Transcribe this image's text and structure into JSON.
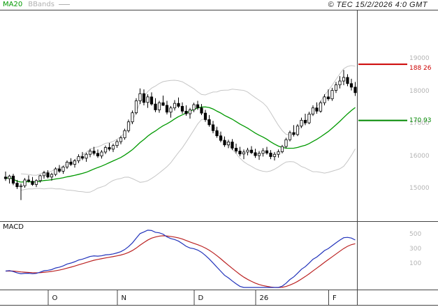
{
  "header": {
    "legend_ma20": "MA20",
    "legend_bbands": "BBands",
    "copyright": "© TEC 15/2/2026 4:0 GMT"
  },
  "colors": {
    "ma20": "#009900",
    "bbands": "#c6c6c6",
    "candle_up_fill": "#ffffff",
    "candle_down_fill": "#000000",
    "candle_stroke": "#000000",
    "macd_line": "#2233bb",
    "macd_signal": "#bb2222",
    "frame": "#444444",
    "axis_label_gray": "#b4b4b4",
    "level_resistance": "#cc0000",
    "level_support": "#008800"
  },
  "chart_data": {
    "type": "candlestick",
    "title": "",
    "xlabel": "",
    "ylabel": "",
    "x_axis": {
      "tick_labels": [
        "O",
        "N",
        "D",
        "26",
        "F"
      ],
      "tick_bar_index": [
        11,
        29,
        49,
        65,
        84
      ]
    },
    "y_axis": {
      "tick_labels": [
        "19000",
        "18000",
        "17000",
        "16000",
        "15000"
      ],
      "tick_values": [
        19000,
        18000,
        17000,
        16000,
        15000
      ]
    },
    "levels": [
      {
        "label": "188 26",
        "value": 18826,
        "color": "#cc0000"
      },
      {
        "label": "170 93",
        "value": 17093,
        "color": "#008800"
      }
    ],
    "indicators": {
      "ma": {
        "name": "MA20",
        "period": 20,
        "color": "#009900"
      },
      "bbands": {
        "name": "BBands",
        "period": 20,
        "stddev": 2,
        "color": "#c6c6c6"
      }
    },
    "candles_ohlc": [
      [
        15350,
        15520,
        15230,
        15300
      ],
      [
        15300,
        15420,
        15150,
        15380
      ],
      [
        15380,
        15450,
        15100,
        15160
      ],
      [
        15160,
        15260,
        14980,
        15050
      ],
      [
        15050,
        15150,
        14640,
        15080
      ],
      [
        15080,
        15320,
        15020,
        15260
      ],
      [
        15260,
        15400,
        15180,
        15220
      ],
      [
        15220,
        15350,
        15080,
        15120
      ],
      [
        15120,
        15280,
        15040,
        15240
      ],
      [
        15240,
        15420,
        15180,
        15390
      ],
      [
        15390,
        15540,
        15300,
        15480
      ],
      [
        15480,
        15560,
        15310,
        15350
      ],
      [
        15350,
        15480,
        15240,
        15430
      ],
      [
        15430,
        15650,
        15380,
        15600
      ],
      [
        15600,
        15720,
        15480,
        15530
      ],
      [
        15530,
        15700,
        15450,
        15660
      ],
      [
        15660,
        15860,
        15600,
        15810
      ],
      [
        15810,
        15930,
        15690,
        15740
      ],
      [
        15740,
        15900,
        15640,
        15850
      ],
      [
        15850,
        16050,
        15780,
        15980
      ],
      [
        15980,
        16120,
        15870,
        15930
      ],
      [
        15930,
        16100,
        15820,
        16050
      ],
      [
        16050,
        16220,
        15960,
        16150
      ],
      [
        16150,
        16280,
        16020,
        16080
      ],
      [
        16080,
        16200,
        15940,
        16000
      ],
      [
        16000,
        16180,
        15920,
        16120
      ],
      [
        16120,
        16320,
        16060,
        16260
      ],
      [
        16260,
        16400,
        16150,
        16210
      ],
      [
        16210,
        16380,
        16120,
        16320
      ],
      [
        16320,
        16500,
        16250,
        16440
      ],
      [
        16440,
        16620,
        16360,
        16560
      ],
      [
        16560,
        16840,
        16500,
        16780
      ],
      [
        16780,
        17120,
        16720,
        17050
      ],
      [
        17050,
        17400,
        16980,
        17330
      ],
      [
        17330,
        17780,
        17280,
        17700
      ],
      [
        17700,
        18080,
        17600,
        17920
      ],
      [
        17920,
        18050,
        17560,
        17650
      ],
      [
        17650,
        17900,
        17480,
        17820
      ],
      [
        17820,
        17960,
        17550,
        17600
      ],
      [
        17600,
        17780,
        17350,
        17420
      ],
      [
        17420,
        17700,
        17330,
        17640
      ],
      [
        17640,
        17860,
        17540,
        17560
      ],
      [
        17560,
        17700,
        17280,
        17350
      ],
      [
        17350,
        17540,
        17180,
        17480
      ],
      [
        17480,
        17720,
        17400,
        17620
      ],
      [
        17620,
        17800,
        17480,
        17530
      ],
      [
        17530,
        17650,
        17300,
        17380
      ],
      [
        17380,
        17560,
        17240,
        17300
      ],
      [
        17300,
        17480,
        17150,
        17420
      ],
      [
        17420,
        17640,
        17350,
        17580
      ],
      [
        17580,
        17700,
        17420,
        17480
      ],
      [
        17480,
        17600,
        17260,
        17320
      ],
      [
        17320,
        17420,
        17050,
        17120
      ],
      [
        17120,
        17260,
        16900,
        16960
      ],
      [
        16960,
        17080,
        16700,
        16780
      ],
      [
        16780,
        16900,
        16560,
        16620
      ],
      [
        16620,
        16750,
        16420,
        16480
      ],
      [
        16480,
        16600,
        16280,
        16340
      ],
      [
        16340,
        16500,
        16240,
        16430
      ],
      [
        16430,
        16520,
        16180,
        16240
      ],
      [
        16240,
        16380,
        16080,
        16150
      ],
      [
        16150,
        16280,
        15990,
        16060
      ],
      [
        16060,
        16200,
        15900,
        16120
      ],
      [
        16120,
        16250,
        16020,
        16180
      ],
      [
        16180,
        16300,
        16060,
        16100
      ],
      [
        16100,
        16220,
        15940,
        16010
      ],
      [
        16010,
        16150,
        15880,
        16080
      ],
      [
        16080,
        16240,
        15980,
        16160
      ],
      [
        16160,
        16280,
        16040,
        16090
      ],
      [
        16090,
        16180,
        15900,
        15980
      ],
      [
        15980,
        16120,
        15860,
        16050
      ],
      [
        16050,
        16200,
        15950,
        16130
      ],
      [
        16130,
        16340,
        16080,
        16290
      ],
      [
        16290,
        16560,
        16240,
        16500
      ],
      [
        16500,
        16780,
        16450,
        16720
      ],
      [
        16720,
        16950,
        16600,
        16660
      ],
      [
        16660,
        16980,
        16610,
        16920
      ],
      [
        16920,
        17180,
        16860,
        17100
      ],
      [
        17100,
        17300,
        16950,
        17020
      ],
      [
        17020,
        17360,
        16980,
        17290
      ],
      [
        17290,
        17560,
        17230,
        17480
      ],
      [
        17480,
        17650,
        17300,
        17380
      ],
      [
        17380,
        17700,
        17330,
        17640
      ],
      [
        17640,
        17900,
        17560,
        17820
      ],
      [
        17820,
        18050,
        17700,
        17760
      ],
      [
        17760,
        18100,
        17700,
        18020
      ],
      [
        18020,
        18280,
        17940,
        18190
      ],
      [
        18190,
        18460,
        18080,
        18310
      ],
      [
        18310,
        18650,
        18180,
        18420
      ],
      [
        18420,
        18520,
        18150,
        18230
      ],
      [
        18230,
        18380,
        18020,
        18120
      ],
      [
        18120,
        18280,
        17850,
        17950
      ]
    ],
    "macd_panel": {
      "label": "MACD",
      "params": {
        "fast": 12,
        "slow": 26,
        "signal": 9
      },
      "macd_color": "#2233bb",
      "signal_color": "#bb2222",
      "y_axis": {
        "tick_labels": [
          "500",
          "300",
          "100"
        ],
        "tick_values": [
          500,
          300,
          100
        ]
      }
    }
  }
}
